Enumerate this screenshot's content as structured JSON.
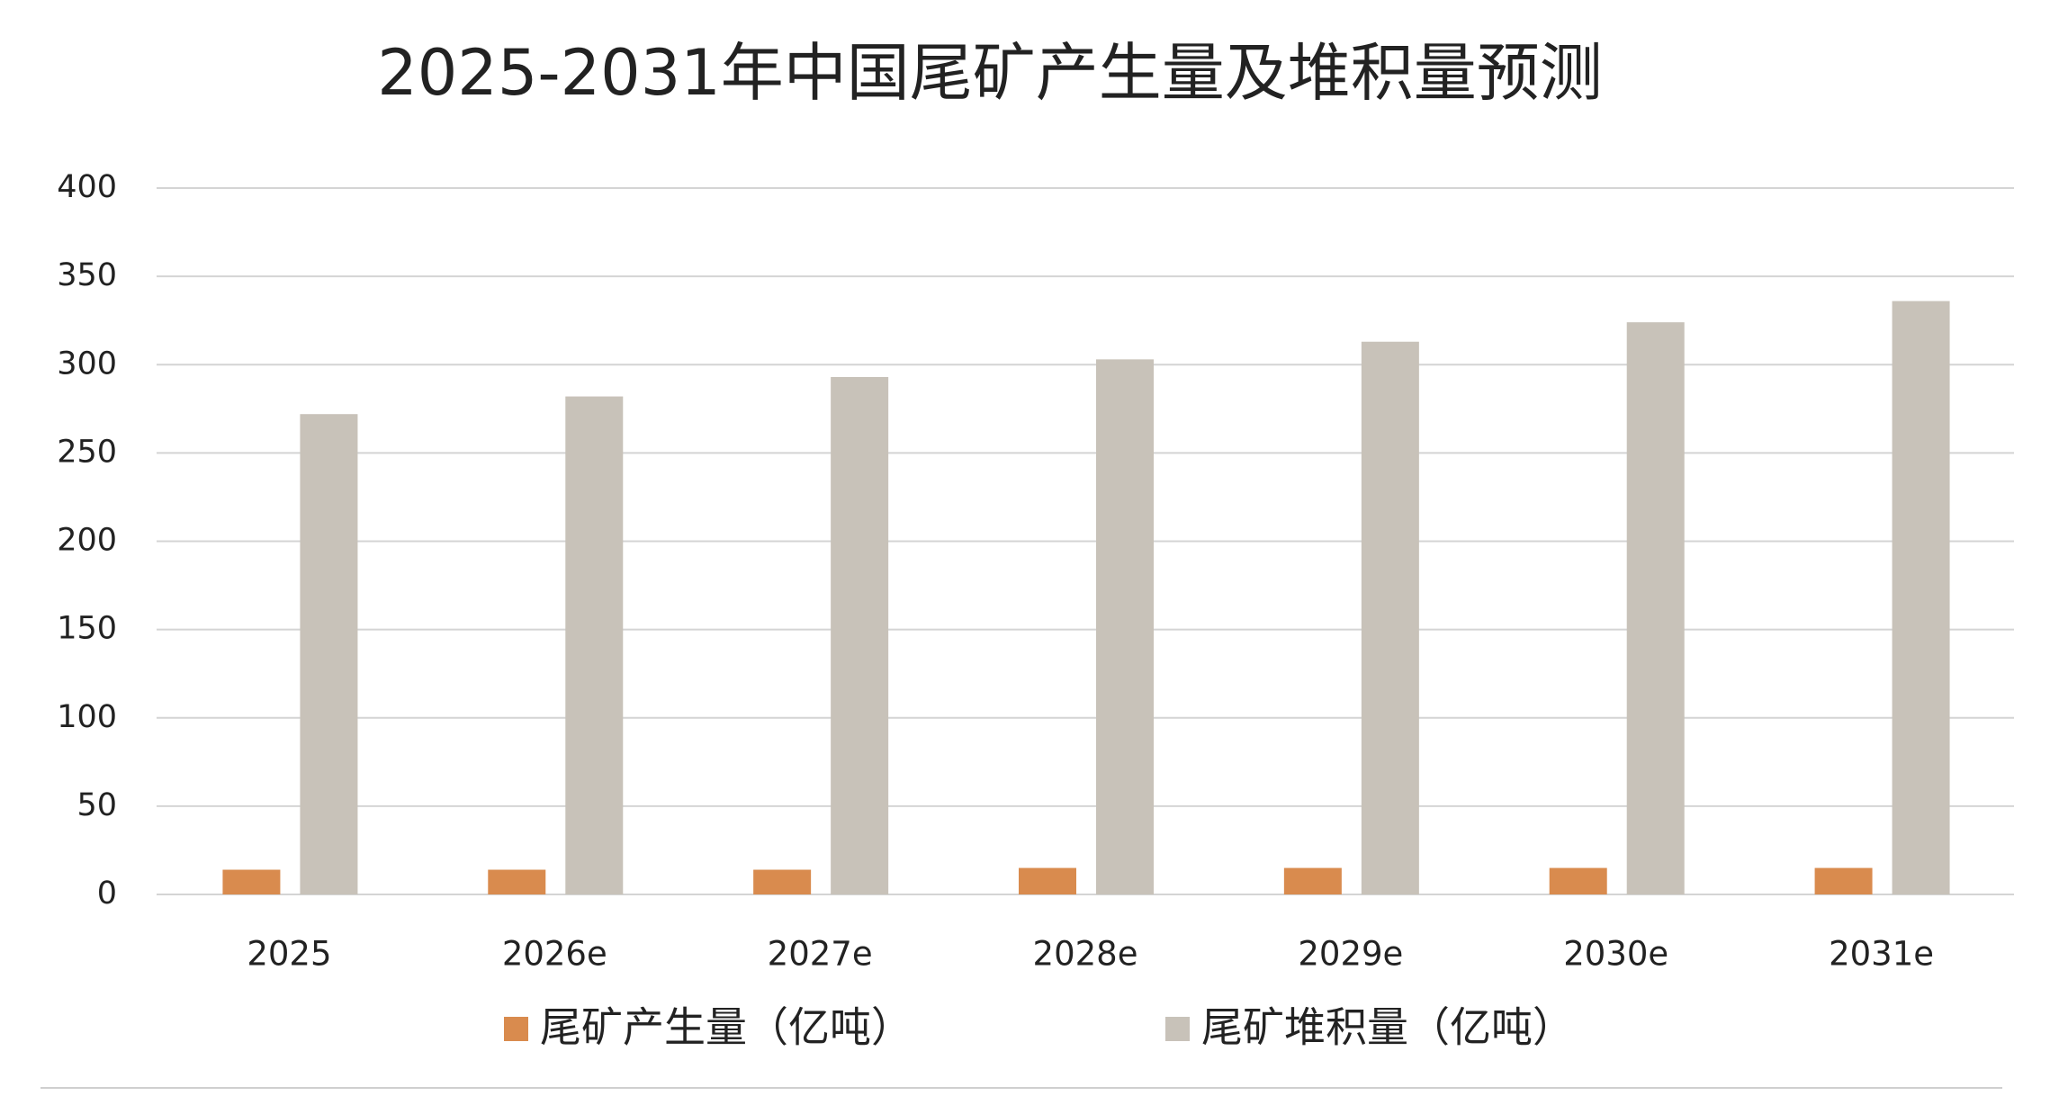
{
  "chart_data": {
    "type": "bar",
    "title": "2025-2031年中国尾矿产生量及堆积量预测",
    "categories": [
      "2025",
      "2026e",
      "2027e",
      "2028e",
      "2029e",
      "2030e",
      "2031e"
    ],
    "series": [
      {
        "name": "尾矿产生量（亿吨）",
        "color": "#d98b4e",
        "values": [
          14,
          14,
          14,
          15,
          15,
          15,
          15
        ]
      },
      {
        "name": "尾矿堆积量（亿吨）",
        "color": "#c8c2b9",
        "values": [
          272,
          282,
          293,
          303,
          313,
          324,
          336
        ]
      }
    ],
    "ylim": [
      0,
      400
    ],
    "yticks": [
      0,
      50,
      100,
      150,
      200,
      250,
      300,
      350,
      400
    ],
    "grid": true,
    "legend": "bottom"
  }
}
